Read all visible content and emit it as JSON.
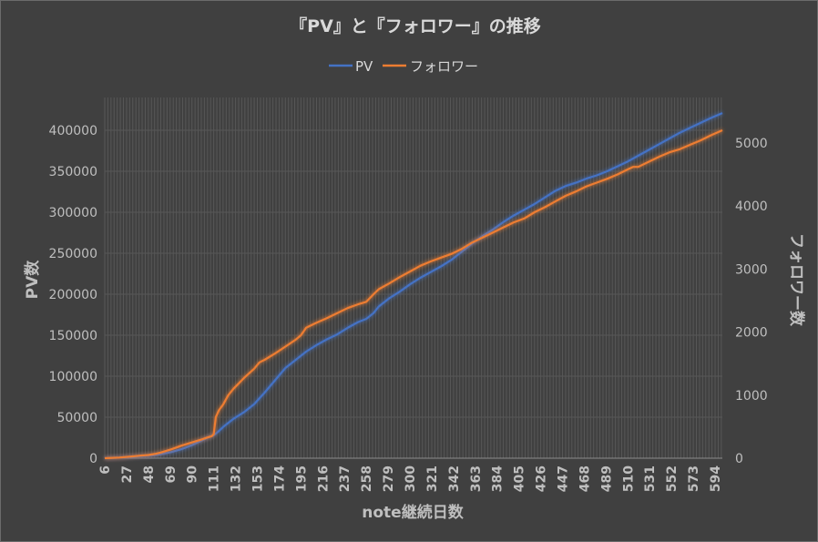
{
  "chart_data": {
    "type": "line",
    "title": "『PV』と『フォロワー』の推移",
    "xlabel": "note継続日数",
    "ylabel": "PV数",
    "y2label": "フォロワー数",
    "ylim": [
      0,
      440000
    ],
    "y2lim": [
      0,
      5720
    ],
    "yticks": [
      "0",
      "50000",
      "100000",
      "150000",
      "200000",
      "250000",
      "300000",
      "350000",
      "400000"
    ],
    "y2ticks": [
      "0",
      "1000",
      "2000",
      "3000",
      "4000",
      "5000"
    ],
    "xticks": [
      "6",
      "27",
      "48",
      "69",
      "90",
      "111",
      "132",
      "153",
      "174",
      "195",
      "216",
      "237",
      "258",
      "279",
      "300",
      "321",
      "342",
      "363",
      "384",
      "405",
      "426",
      "447",
      "468",
      "489",
      "510",
      "531",
      "552",
      "573",
      "594"
    ],
    "xlim": [
      6,
      601
    ],
    "grid": true,
    "legend_position": "top",
    "series": [
      {
        "name": "PV",
        "axis": "left",
        "color": "#4472C4",
        "x": [
          6,
          20,
          30,
          40,
          48,
          55,
          60,
          70,
          80,
          90,
          100,
          105,
          111,
          115,
          120,
          130,
          140,
          150,
          155,
          160,
          170,
          180,
          190,
          195,
          200,
          210,
          220,
          230,
          240,
          250,
          258,
          265,
          270,
          280,
          290,
          300,
          310,
          320,
          330,
          340,
          350,
          360,
          370,
          380,
          390,
          400,
          410,
          420,
          430,
          440,
          450,
          460,
          470,
          480,
          490,
          500,
          510,
          520,
          530,
          540,
          550,
          560,
          570,
          580,
          590,
          601
        ],
        "values": [
          0,
          700,
          1500,
          2500,
          3000,
          4000,
          5000,
          7500,
          11000,
          16000,
          22000,
          25000,
          28000,
          32000,
          38000,
          48000,
          56000,
          66000,
          73000,
          80000,
          95000,
          110000,
          120000,
          125000,
          130000,
          138000,
          145000,
          151000,
          159000,
          166000,
          170000,
          177000,
          185000,
          195000,
          203000,
          212000,
          220000,
          227000,
          234000,
          242000,
          252000,
          262000,
          271000,
          279000,
          288000,
          296000,
          303000,
          310000,
          318000,
          326000,
          332000,
          336000,
          341000,
          345000,
          350000,
          356000,
          362000,
          369000,
          376000,
          383000,
          390000,
          397000,
          403000,
          409000,
          415000,
          421000
        ]
      },
      {
        "name": "フォロワー",
        "axis": "right",
        "color": "#ED7D31",
        "x": [
          6,
          20,
          30,
          40,
          48,
          55,
          60,
          70,
          80,
          90,
          100,
          105,
          109,
          111,
          113,
          116,
          120,
          125,
          130,
          140,
          150,
          155,
          160,
          170,
          180,
          190,
          195,
          200,
          210,
          220,
          230,
          240,
          250,
          258,
          265,
          270,
          280,
          290,
          300,
          310,
          320,
          330,
          340,
          350,
          360,
          370,
          380,
          390,
          400,
          410,
          420,
          430,
          440,
          450,
          460,
          470,
          480,
          490,
          500,
          510,
          515,
          520,
          530,
          540,
          550,
          560,
          570,
          580,
          590,
          601
        ],
        "values": [
          0,
          10,
          25,
          40,
          50,
          70,
          90,
          140,
          200,
          250,
          300,
          330,
          350,
          380,
          650,
          760,
          850,
          1000,
          1100,
          1270,
          1420,
          1520,
          1560,
          1660,
          1770,
          1880,
          1950,
          2070,
          2150,
          2220,
          2300,
          2380,
          2440,
          2480,
          2600,
          2680,
          2770,
          2870,
          2960,
          3050,
          3120,
          3180,
          3240,
          3320,
          3420,
          3500,
          3580,
          3660,
          3740,
          3800,
          3900,
          3980,
          4070,
          4160,
          4230,
          4310,
          4370,
          4430,
          4500,
          4580,
          4620,
          4620,
          4700,
          4780,
          4850,
          4900,
          4970,
          5040,
          5120,
          5200
        ]
      }
    ]
  }
}
